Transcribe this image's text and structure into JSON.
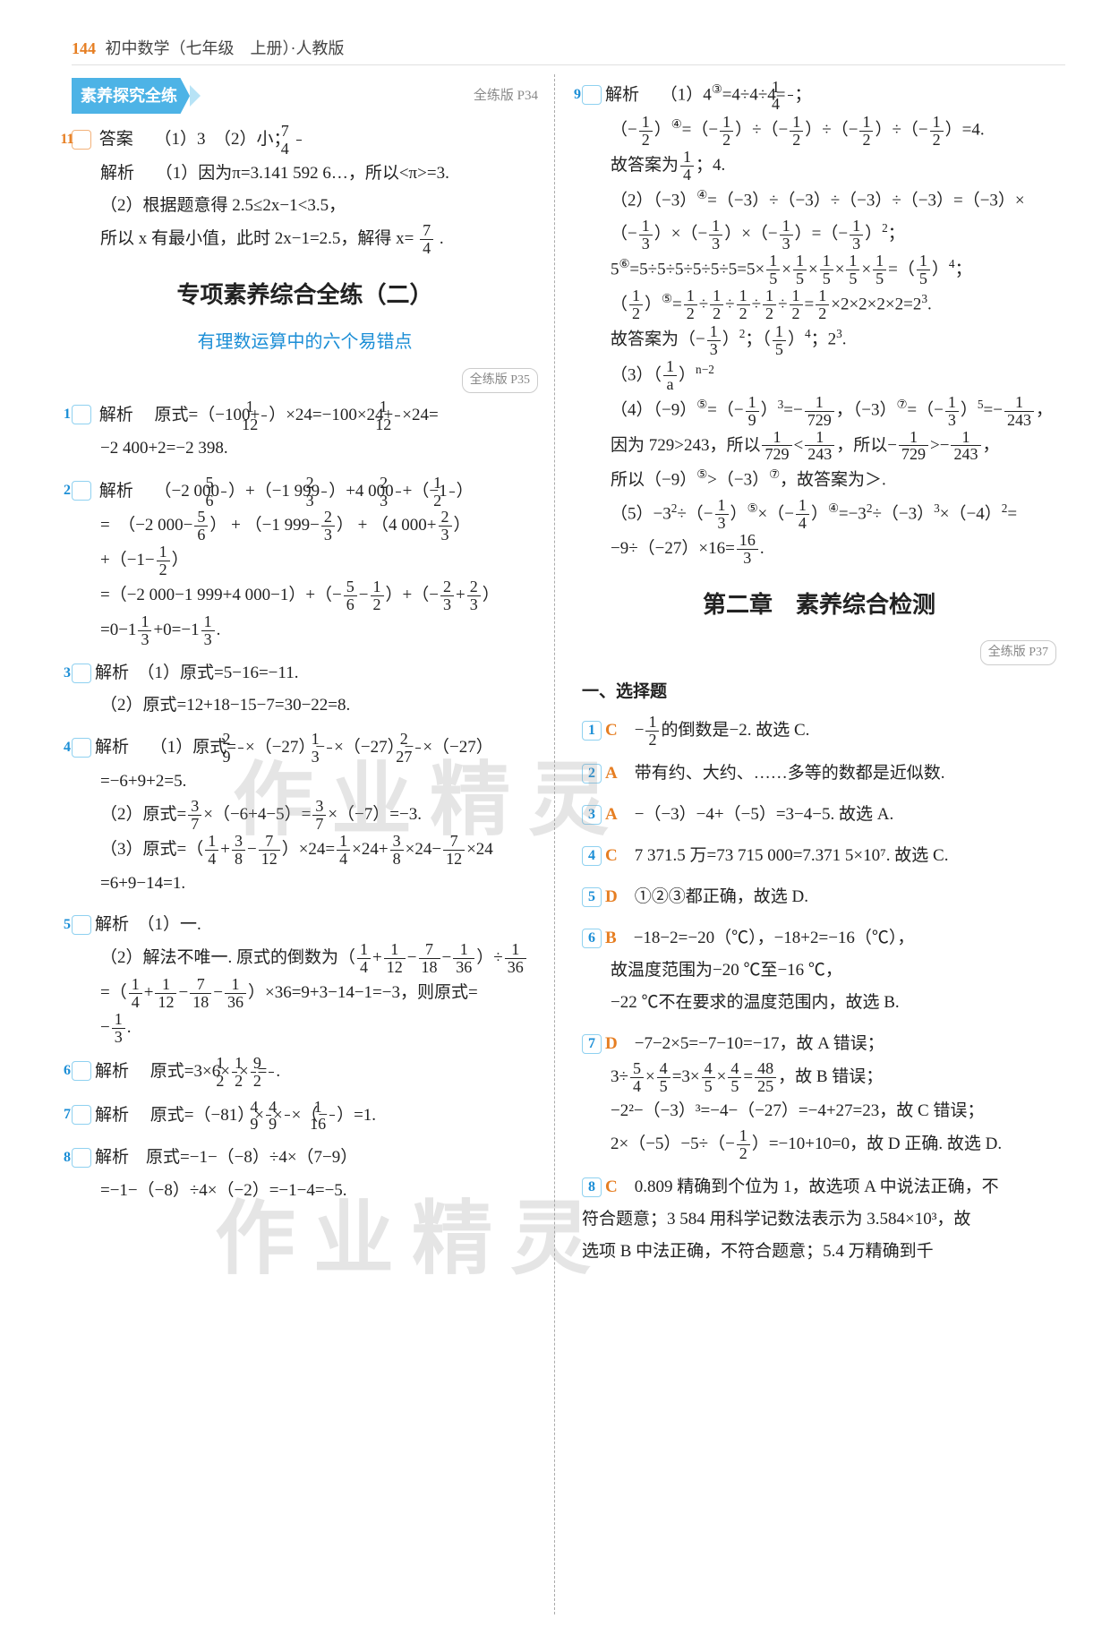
{
  "header": {
    "page_number": "144",
    "title": "初中数学（七年级　上册）·人教版"
  },
  "watermark": "作业精灵",
  "left": {
    "banner": "素养探究全练",
    "banner_ref": "全练版 P34",
    "q11": {
      "num": "11",
      "ans_label": "答案",
      "ans_text": "（1）3　（2）小；",
      "frac_n": "7",
      "frac_d": "4",
      "ex_label": "解析",
      "l1": "（1）因为π=3.141 592 6…，所以<π>=3.",
      "l2": "（2）根据题意得 2.5≤2x−1<3.5，",
      "l3a": "所以 x 有最小值，此时 2x−1=2.5，解得 x=",
      "l3_n": "7",
      "l3_d": "4",
      "l3b": "."
    },
    "chapter_title": "专项素养综合全练（二）",
    "chapter_sub": "有理数运算中的六个易错点",
    "chapter_ref": "全练版 P35",
    "q1": {
      "num": "1",
      "label": "解析",
      "a": "原式=（−100+",
      "f1n": "1",
      "f1d": "12",
      "b": "）×24=−100×24+",
      "f2n": "1",
      "f2d": "12",
      "c": "×24=",
      "d": "−2 400+2=−2 398."
    },
    "q2": {
      "num": "2",
      "label": "解析",
      "l1a": "（−2 000",
      "f1n": "5",
      "f1d": "6",
      "l1b": "）+（−1 999",
      "f2n": "2",
      "f2d": "3",
      "l1c": "）+4 000",
      "f3n": "2",
      "f3d": "3",
      "l1d": "+（−1",
      "f4n": "1",
      "f4d": "2",
      "l1e": "）",
      "l2a": "=　（−2 000−",
      "g1n": "5",
      "g1d": "6",
      "l2b": "） + （−1 999−",
      "g2n": "2",
      "g2d": "3",
      "l2c": "） + （4 000+",
      "g3n": "2",
      "g3d": "3",
      "l2d": "）",
      "l3a": "+（−1−",
      "h1n": "1",
      "h1d": "2",
      "l3b": "）",
      "l4a": "=（−2 000−1 999+4 000−1）+（−",
      "i1n": "5",
      "i1d": "6",
      "l4b": "−",
      "i2n": "1",
      "i2d": "2",
      "l4c": "）+（−",
      "i3n": "2",
      "i3d": "3",
      "l4d": "+",
      "i4n": "2",
      "i4d": "3",
      "l4e": "）",
      "l5a": "=0−1",
      "j1n": "1",
      "j1d": "3",
      "l5b": "+0=−1",
      "j2n": "1",
      "j2d": "3",
      "l5c": "."
    },
    "q3": {
      "num": "3",
      "label": "解析",
      "l1": "（1）原式=5−16=−11.",
      "l2": "（2）原式=12+18−15−7=30−22=8."
    },
    "q4": {
      "num": "4",
      "label": "解析",
      "l1a": "（1）原式=",
      "a1n": "2",
      "a1d": "9",
      "l1b": "×（−27）−",
      "a2n": "1",
      "a2d": "3",
      "l1c": "×（−27）−",
      "a3n": "2",
      "a3d": "27",
      "l1d": "×（−27）",
      "l2": "=−6+9+2=5.",
      "l3a": "（2）原式=",
      "b1n": "3",
      "b1d": "7",
      "l3b": "×（−6+4−5）=",
      "b2n": "3",
      "b2d": "7",
      "l3c": "×（−7）=−3.",
      "l4a": "（3）原式=（",
      "c1n": "1",
      "c1d": "4",
      "l4b": "+",
      "c2n": "3",
      "c2d": "8",
      "l4c": "−",
      "c3n": "7",
      "c3d": "12",
      "l4d": "）×24=",
      "c4n": "1",
      "c4d": "4",
      "l4e": "×24+",
      "c5n": "3",
      "c5d": "8",
      "l4f": "×24−",
      "c6n": "7",
      "c6d": "12",
      "l4g": "×24",
      "l5": "=6+9−14=1."
    },
    "q5": {
      "num": "5",
      "label": "解析",
      "l1": "（1）一.",
      "l2a": "（2）解法不唯一. 原式的倒数为（",
      "d1n": "1",
      "d1d": "4",
      "l2b": "+",
      "d2n": "1",
      "d2d": "12",
      "l2c": "−",
      "d3n": "7",
      "d3d": "18",
      "l2d": "−",
      "d4n": "1",
      "d4d": "36",
      "l2e": "）÷",
      "d5n": "1",
      "d5d": "36",
      "l3a": "=（",
      "e1n": "1",
      "e1d": "4",
      "l3b": "+",
      "e2n": "1",
      "e2d": "12",
      "l3c": "−",
      "e3n": "7",
      "e3d": "18",
      "l3d": "−",
      "e4n": "1",
      "e4d": "36",
      "l3e": "）×36=9+3−14−1=−3，则原式=",
      "l4a": "−",
      "f1n": "1",
      "f1d": "3",
      "l4b": "."
    },
    "q6": {
      "num": "6",
      "label": "解析",
      "a": "原式=3×6×",
      "f1n": "1",
      "f1d": "2",
      "b": "×",
      "f2n": "1",
      "f2d": "2",
      "c": "=",
      "f3n": "9",
      "f3d": "2",
      "d": "."
    },
    "q7": {
      "num": "7",
      "label": "解析",
      "a": "原式=（−81）×",
      "f1n": "4",
      "f1d": "9",
      "b": "×",
      "f2n": "4",
      "f2d": "9",
      "c": "×（−",
      "f3n": "1",
      "f3d": "16",
      "d": "）=1."
    },
    "q8": {
      "num": "8",
      "label": "解析",
      "l1": "原式=−1−（−8）÷4×（7−9）",
      "l2": "=−1−（−8）÷4×（−2）=−1−4=−5."
    }
  },
  "right": {
    "q9": {
      "num": "9",
      "label": "解析",
      "l1a": "（1）4",
      "sup1": "③",
      "l1b": "=4÷4÷4=",
      "f1n": "1",
      "f1d": "4",
      "l1c": "；",
      "l2a": "（−",
      "g1n": "1",
      "g1d": "2",
      "l2b": "）",
      "sup2": "④",
      "l2c": "=（−",
      "g2n": "1",
      "g2d": "2",
      "l2d": "）÷（−",
      "g3n": "1",
      "g3d": "2",
      "l2e": "）÷（−",
      "g4n": "1",
      "g4d": "2",
      "l2f": "）÷（−",
      "g5n": "1",
      "g5d": "2",
      "l2g": "）=4.",
      "l3a": "故答案为",
      "h1n": "1",
      "h1d": "4",
      "l3b": "；4.",
      "l4a": "（2）（−3）",
      "sup3": "④",
      "l4b": "=（−3）÷（−3）÷（−3）÷（−3）=（−3）×",
      "l5a": "（−",
      "i1n": "1",
      "i1d": "3",
      "l5b": "）×（−",
      "i2n": "1",
      "i2d": "3",
      "l5c": "）×（−",
      "i3n": "1",
      "i3d": "3",
      "l5d": "）=（−",
      "i4n": "1",
      "i4d": "3",
      "l5e": "）",
      "sup4": "2",
      "l5f": "；",
      "l6a": "5",
      "sup5": "⑥",
      "l6b": "=5÷5÷5÷5÷5÷5=5×",
      "j1n": "1",
      "j1d": "5",
      "l6c": "×",
      "j2n": "1",
      "j2d": "5",
      "l6d": "×",
      "j3n": "1",
      "j3d": "5",
      "l6e": "×",
      "j4n": "1",
      "j4d": "5",
      "l6f": "×",
      "j5n": "1",
      "j5d": "5",
      "l6g": "=（",
      "j6n": "1",
      "j6d": "5",
      "l6h": "）",
      "sup6": "4",
      "l6i": "；",
      "l7a": "（",
      "k1n": "1",
      "k1d": "2",
      "l7b": "）",
      "sup7": "⑤",
      "l7c": "=",
      "k2n": "1",
      "k2d": "2",
      "l7d": "÷",
      "k3n": "1",
      "k3d": "2",
      "l7e": "÷",
      "k4n": "1",
      "k4d": "2",
      "l7f": "÷",
      "k5n": "1",
      "k5d": "2",
      "l7g": "÷",
      "k6n": "1",
      "k6d": "2",
      "l7h": "=",
      "k7n": "1",
      "k7d": "2",
      "l7i": "×2×2×2×2=2",
      "sup8": "3",
      "l7j": ".",
      "l8a": "故答案为（−",
      "m1n": "1",
      "m1d": "3",
      "l8b": "）",
      "sup9": "2",
      "l8c": "；（",
      "m2n": "1",
      "m2d": "5",
      "l8d": "）",
      "sup10": "4",
      "l8e": "；2",
      "sup11": "3",
      "l8f": ".",
      "l9a": "（3）（",
      "n1n": "1",
      "n1d": "a",
      "l9b": "）",
      "sup12": "n−2",
      "l10a": "（4）（−9）",
      "sup13": "⑤",
      "l10b": "=（−",
      "o1n": "1",
      "o1d": "9",
      "l10c": "）",
      "sup14": "3",
      "l10d": "=−",
      "o2n": "1",
      "o2d": "729",
      "l10e": "，（−3）",
      "sup15": "⑦",
      "l10f": "=（−",
      "o3n": "1",
      "o3d": "3",
      "l10g": "）",
      "sup16": "5",
      "l10h": "=−",
      "o4n": "1",
      "o4d": "243",
      "l10i": "，",
      "l11a": "因为 729>243，所以",
      "p1n": "1",
      "p1d": "729",
      "l11b": "<",
      "p2n": "1",
      "p2d": "243",
      "l11c": "，所以−",
      "p3n": "1",
      "p3d": "729",
      "l11d": ">−",
      "p4n": "1",
      "p4d": "243",
      "l11e": "，",
      "l12a": "所以（−9）",
      "sup17": "⑤",
      "l12b": ">（−3）",
      "sup18": "⑦",
      "l12c": "，故答案为＞.",
      "l13a": "（5）−3",
      "sup19": "2",
      "l13b": "÷（−",
      "q1n": "1",
      "q1d": "3",
      "l13c": "）",
      "sup20": "⑤",
      "l13d": "×（−",
      "q2n": "1",
      "q2d": "4",
      "l13e": "）",
      "sup21": "④",
      "l13f": "=−3",
      "sup22": "2",
      "l13g": "÷（−3）",
      "sup23": "3",
      "l13h": "×（−4）",
      "sup24": "2",
      "l13i": "=",
      "l14a": "−9÷（−27）×16=",
      "r1n": "16",
      "r1d": "3",
      "l14b": "."
    },
    "chapter2_title": "第二章　素养综合检测",
    "chapter2_ref": "全练版 P37",
    "section_a": "一、选择题",
    "c1": {
      "num": "1",
      "ans": "C",
      "a": "−",
      "fn": "1",
      "fd": "2",
      "b": "的倒数是−2. 故选 C."
    },
    "c2": {
      "num": "2",
      "ans": "A",
      "t": "带有约、大约、……多等的数都是近似数."
    },
    "c3": {
      "num": "3",
      "ans": "A",
      "t": "−（−3）−4+（−5）=3−4−5. 故选 A."
    },
    "c4": {
      "num": "4",
      "ans": "C",
      "t": "7 371.5 万=73 715 000=7.371 5×10⁷. 故选 C."
    },
    "c5": {
      "num": "5",
      "ans": "D",
      "t": "①②③都正确，故选 D."
    },
    "c6": {
      "num": "6",
      "ans": "B",
      "l1": "−18−2=−20（℃），−18+2=−16（℃），",
      "l2": "故温度范围为−20 ℃至−16 ℃，",
      "l3": "−22 ℃不在要求的温度范围内，故选 B."
    },
    "c7": {
      "num": "7",
      "ans": "D",
      "l1": "−7−2×5=−7−10=−17，故 A 错误；",
      "l2a": "3÷",
      "an": "5",
      "ad": "4",
      "l2b": "×",
      "bn": "4",
      "bd": "5",
      "l2c": "=3×",
      "cn": "4",
      "cd": "5",
      "l2d": "×",
      "dn": "4",
      "dd": "5",
      "l2e": "=",
      "en": "48",
      "ed": "25",
      "l2f": "，故 B 错误；",
      "l3": "−2²−（−3）³=−4−（−27）=−4+27=23，故 C 错误；",
      "l4a": "2×（−5）−5÷（−",
      "fn": "1",
      "fd": "2",
      "l4b": "）=−10+10=0，故 D 正确. 故选 D."
    },
    "c8": {
      "num": "8",
      "ans": "C",
      "l1": "0.809 精确到个位为 1，故选项 A 中说法正确，不",
      "l2": "符合题意；3 584 用科学记数法表示为 3.584×10³，故",
      "l3": "选项 B 中法正确，不符合题意；5.4 万精确到千"
    }
  }
}
